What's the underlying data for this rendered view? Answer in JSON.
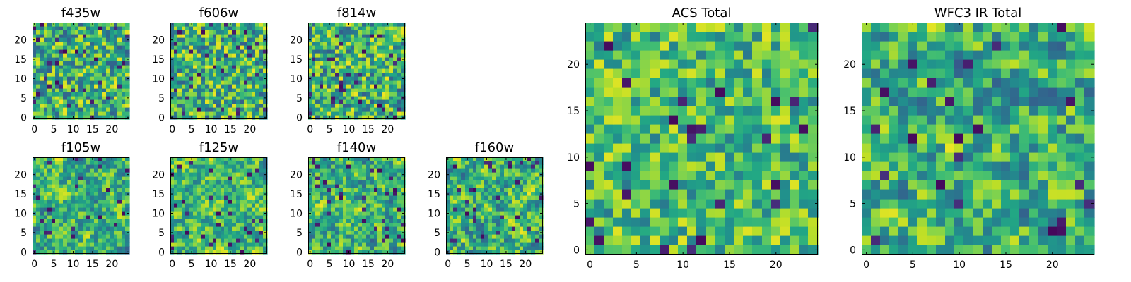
{
  "chart_data": [
    {
      "type": "heatmap",
      "title": "f435w",
      "seed": 11,
      "smooth": 0,
      "lo": 0.3,
      "hi": 0.98,
      "dark": 0.05,
      "xlim": [
        0,
        24
      ],
      "ylim": [
        0,
        24
      ],
      "xticks": [
        0,
        5,
        10,
        15,
        20
      ],
      "yticks": [
        0,
        5,
        10,
        15,
        20
      ],
      "grid": false,
      "colormap": "viridis"
    },
    {
      "type": "heatmap",
      "title": "f606w",
      "seed": 23,
      "smooth": 0,
      "lo": 0.3,
      "hi": 0.98,
      "dark": 0.05,
      "xlim": [
        0,
        24
      ],
      "ylim": [
        0,
        24
      ],
      "xticks": [
        0,
        5,
        10,
        15,
        20
      ],
      "yticks": [
        0,
        5,
        10,
        15,
        20
      ],
      "grid": false,
      "colormap": "viridis"
    },
    {
      "type": "heatmap",
      "title": "f814w",
      "seed": 37,
      "smooth": 0,
      "lo": 0.3,
      "hi": 0.98,
      "dark": 0.05,
      "xlim": [
        0,
        24
      ],
      "ylim": [
        0,
        24
      ],
      "xticks": [
        0,
        5,
        10,
        15,
        20
      ],
      "yticks": [
        0,
        5,
        10,
        15,
        20
      ],
      "grid": false,
      "colormap": "viridis"
    },
    {
      "type": "heatmap",
      "title": "f105w",
      "seed": 41,
      "smooth": 1,
      "lo": 0.3,
      "hi": 0.98,
      "dark": 0.05,
      "xlim": [
        0,
        24
      ],
      "ylim": [
        0,
        24
      ],
      "xticks": [
        0,
        5,
        10,
        15,
        20
      ],
      "yticks": [
        0,
        5,
        10,
        15,
        20
      ],
      "grid": false,
      "colormap": "viridis"
    },
    {
      "type": "heatmap",
      "title": "f125w",
      "seed": 53,
      "smooth": 1,
      "lo": 0.35,
      "hi": 0.98,
      "dark": 0.04,
      "xlim": [
        0,
        24
      ],
      "ylim": [
        0,
        24
      ],
      "xticks": [
        0,
        5,
        10,
        15,
        20
      ],
      "yticks": [
        0,
        5,
        10,
        15,
        20
      ],
      "grid": false,
      "colormap": "viridis"
    },
    {
      "type": "heatmap",
      "title": "f140w",
      "seed": 67,
      "smooth": 1,
      "lo": 0.3,
      "hi": 0.98,
      "dark": 0.05,
      "xlim": [
        0,
        24
      ],
      "ylim": [
        0,
        24
      ],
      "xticks": [
        0,
        5,
        10,
        15,
        20
      ],
      "yticks": [
        0,
        5,
        10,
        15,
        20
      ],
      "grid": false,
      "colormap": "viridis"
    },
    {
      "type": "heatmap",
      "title": "f160w",
      "seed": 79,
      "smooth": 1,
      "lo": 0.3,
      "hi": 0.98,
      "dark": 0.05,
      "xlim": [
        0,
        24
      ],
      "ylim": [
        0,
        24
      ],
      "xticks": [
        0,
        5,
        10,
        15,
        20
      ],
      "yticks": [
        0,
        5,
        10,
        15,
        20
      ],
      "grid": false,
      "colormap": "viridis"
    },
    {
      "type": "heatmap",
      "title": "ACS Total",
      "seed": 83,
      "smooth": 0,
      "lo": 0.4,
      "hi": 0.96,
      "dark": 0.03,
      "xlim": [
        0,
        24
      ],
      "ylim": [
        0,
        24
      ],
      "xticks": [
        0,
        5,
        10,
        15,
        20
      ],
      "yticks": [
        0,
        5,
        10,
        15,
        20
      ],
      "grid": false,
      "colormap": "viridis"
    },
    {
      "type": "heatmap",
      "title": "WFC3 IR Total",
      "seed": 97,
      "smooth": 1,
      "lo": 0.28,
      "hi": 0.97,
      "dark": 0.04,
      "xlim": [
        0,
        24
      ],
      "ylim": [
        0,
        24
      ],
      "xticks": [
        0,
        5,
        10,
        15,
        20
      ],
      "yticks": [
        0,
        5,
        10,
        15,
        20
      ],
      "grid": false,
      "colormap": "viridis"
    }
  ]
}
